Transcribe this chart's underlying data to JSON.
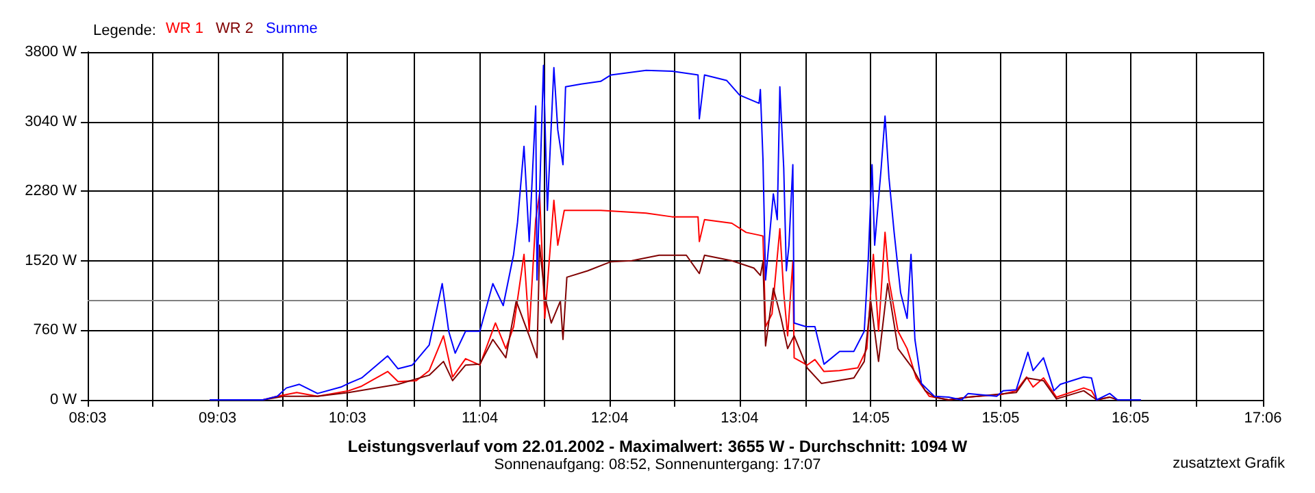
{
  "chart_data": {
    "type": "line",
    "title": "Leistungsverlauf vom 22.01.2002 - Maximalwert: 3655 W - Durchschnitt: 1094 W",
    "subtitle": "Sonnenaufgang: 08:52, Sonnenuntergang: 17:07",
    "annotations": [
      "zusatztext Grafik"
    ],
    "legend_title": "Legende:",
    "legend": "top left",
    "grid": true,
    "marker": "none",
    "line_style": "solid",
    "xlim": [
      8.05,
      17.1
    ],
    "xticks": [
      {
        "value": 8.05,
        "label": "08:03"
      },
      {
        "value": 8.55,
        "label": null
      },
      {
        "value": 9.05,
        "label": "09:03"
      },
      {
        "value": 9.55,
        "label": null
      },
      {
        "value": 10.05,
        "label": "10:03"
      },
      {
        "value": 10.56,
        "label": null
      },
      {
        "value": 11.07,
        "label": "11:04"
      },
      {
        "value": 11.57,
        "label": null
      },
      {
        "value": 12.07,
        "label": "12:04"
      },
      {
        "value": 12.57,
        "label": null
      },
      {
        "value": 13.07,
        "label": "13:04"
      },
      {
        "value": 13.58,
        "label": null
      },
      {
        "value": 14.08,
        "label": "14:05"
      },
      {
        "value": 14.58,
        "label": null
      },
      {
        "value": 15.08,
        "label": "15:05"
      },
      {
        "value": 15.58,
        "label": null
      },
      {
        "value": 16.08,
        "label": "16:05"
      },
      {
        "value": 16.59,
        "label": null
      },
      {
        "value": 17.1,
        "label": "17:06"
      }
    ],
    "ylim": [
      0,
      3800
    ],
    "yticks": [
      {
        "value": 0,
        "label": "0 W"
      },
      {
        "value": 760,
        "label": "760 W"
      },
      {
        "value": 1520,
        "label": "1520 W"
      },
      {
        "value": 2280,
        "label": "2280 W"
      },
      {
        "value": 3040,
        "label": "3040 W"
      },
      {
        "value": 3800,
        "label": "3800 W"
      }
    ],
    "ref_lines": [
      {
        "axis": "y",
        "value": 1094,
        "color": "#808080"
      }
    ],
    "series": [
      {
        "name": "WR 1",
        "color": "#ff0000",
        "x": [
          8.99,
          9.4,
          9.51,
          9.66,
          9.82,
          10.06,
          10.16,
          10.36,
          10.44,
          10.58,
          10.68,
          10.79,
          10.86,
          10.96,
          11.07,
          11.19,
          11.27,
          11.33,
          11.41,
          11.45,
          11.5,
          11.53,
          11.57,
          11.64,
          11.67,
          11.72,
          12.0,
          12.35,
          12.55,
          12.75,
          12.76,
          12.8,
          13.01,
          13.12,
          13.22,
          13.25,
          13.27,
          13.32,
          13.38,
          13.41,
          13.44,
          13.48,
          13.49,
          13.59,
          13.65,
          13.72,
          13.84,
          13.98,
          14.05,
          14.1,
          14.14,
          14.19,
          14.22,
          14.29,
          14.36,
          14.43,
          14.53,
          14.68,
          14.83,
          15.09,
          15.2,
          15.28,
          15.33,
          15.41,
          15.51,
          15.72,
          15.78,
          15.82,
          15.92
        ],
        "values": [
          0,
          0,
          40,
          80,
          40,
          100,
          150,
          310,
          200,
          210,
          320,
          700,
          250,
          450,
          380,
          840,
          560,
          800,
          1590,
          750,
          1970,
          2250,
          890,
          2180,
          1690,
          2070,
          2070,
          2040,
          2000,
          2000,
          1730,
          1970,
          1930,
          1830,
          1800,
          1790,
          800,
          940,
          1870,
          1170,
          700,
          1510,
          460,
          380,
          440,
          310,
          320,
          350,
          560,
          1590,
          750,
          1830,
          1310,
          750,
          560,
          240,
          40,
          0,
          30,
          60,
          100,
          250,
          140,
          240,
          30,
          130,
          100,
          0,
          30
        ]
      },
      {
        "name": "WR 2",
        "color": "#800000",
        "x": [
          8.99,
          9.4,
          9.56,
          9.82,
          10.06,
          10.44,
          10.68,
          10.79,
          10.86,
          10.96,
          11.07,
          11.17,
          11.27,
          11.35,
          11.45,
          11.51,
          11.53,
          11.57,
          11.62,
          11.69,
          11.71,
          11.74,
          11.9,
          12.08,
          12.24,
          12.45,
          12.66,
          12.76,
          12.8,
          13.01,
          13.18,
          13.23,
          13.25,
          13.27,
          13.33,
          13.39,
          13.44,
          13.49,
          13.59,
          13.7,
          13.95,
          14.03,
          14.08,
          14.14,
          14.21,
          14.29,
          14.4,
          14.5,
          14.57,
          14.68,
          14.83,
          15.2,
          15.28,
          15.41,
          15.51,
          15.72,
          15.82,
          15.92,
          15.98,
          16.16
        ],
        "values": [
          0,
          0,
          40,
          40,
          80,
          170,
          270,
          420,
          210,
          380,
          390,
          660,
          460,
          1080,
          700,
          460,
          1690,
          1130,
          840,
          1080,
          660,
          1340,
          1410,
          1510,
          1520,
          1580,
          1580,
          1380,
          1580,
          1520,
          1440,
          1360,
          1510,
          590,
          1220,
          890,
          560,
          700,
          350,
          180,
          240,
          420,
          1080,
          420,
          1270,
          560,
          350,
          100,
          30,
          0,
          30,
          80,
          240,
          210,
          10,
          100,
          0,
          30,
          0,
          0
        ]
      },
      {
        "name": "Summe",
        "color": "#0000ff",
        "x": [
          8.99,
          9.4,
          9.51,
          9.58,
          9.68,
          9.82,
          10.0,
          10.06,
          10.16,
          10.36,
          10.44,
          10.55,
          10.68,
          10.78,
          10.83,
          10.88,
          10.96,
          11.07,
          11.17,
          11.25,
          11.33,
          11.36,
          11.41,
          11.45,
          11.5,
          11.51,
          11.56,
          11.59,
          11.64,
          11.67,
          11.71,
          11.73,
          11.85,
          12.0,
          12.08,
          12.35,
          12.55,
          12.75,
          12.76,
          12.8,
          12.97,
          13.07,
          13.22,
          13.23,
          13.25,
          13.27,
          13.33,
          13.36,
          13.38,
          13.41,
          13.43,
          13.45,
          13.48,
          13.49,
          13.58,
          13.65,
          13.72,
          13.84,
          13.95,
          14.03,
          14.06,
          14.09,
          14.11,
          14.16,
          14.19,
          14.22,
          14.26,
          14.31,
          14.36,
          14.39,
          14.42,
          14.47,
          14.57,
          14.68,
          14.78,
          14.83,
          15.05,
          15.1,
          15.2,
          15.29,
          15.33,
          15.41,
          15.49,
          15.54,
          15.72,
          15.78,
          15.82,
          15.92,
          15.98,
          16.16
        ],
        "values": [
          0,
          0,
          40,
          130,
          170,
          70,
          140,
          180,
          240,
          480,
          340,
          380,
          600,
          1270,
          750,
          510,
          750,
          750,
          1270,
          1030,
          1590,
          1940,
          2770,
          1730,
          3210,
          1310,
          3655,
          2070,
          3630,
          2950,
          2570,
          3420,
          3450,
          3480,
          3550,
          3600,
          3590,
          3550,
          3070,
          3550,
          3490,
          3330,
          3240,
          3390,
          2630,
          1310,
          2250,
          1970,
          3420,
          2530,
          1410,
          1690,
          2570,
          840,
          800,
          800,
          390,
          530,
          530,
          750,
          1510,
          2570,
          1690,
          2530,
          3100,
          2430,
          1830,
          1170,
          890,
          1590,
          660,
          180,
          40,
          30,
          0,
          70,
          40,
          100,
          110,
          520,
          320,
          460,
          100,
          170,
          250,
          240,
          0,
          70,
          0,
          0
        ]
      }
    ]
  }
}
